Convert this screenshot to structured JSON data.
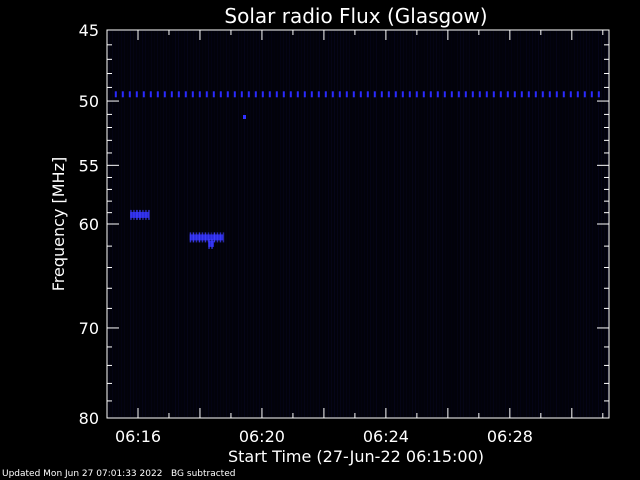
{
  "chart_data": {
    "type": "heatmap",
    "title": "Solar radio Flux (Glasgow)",
    "xlabel": "Start Time (27-Jun-22 06:15:00)",
    "ylabel": "Frequency [MHz]",
    "y_scale": "log",
    "y_range": [
      45,
      80
    ],
    "y_reversed": true,
    "x_range_minutes": [
      6.25,
      6.52
    ],
    "x_ticks": [
      "06:16",
      "06:20",
      "06:24",
      "06:28"
    ],
    "y_ticks": [
      45,
      50,
      55,
      60,
      70,
      80
    ],
    "x_tick_values_hours": [
      6.2667,
      6.3333,
      6.4,
      6.4667
    ],
    "background_color": "#000000",
    "emission_color": "#3030ff",
    "features": [
      {
        "name": "",
        "freq": 49.5,
        "t_start": 6.2542,
        "t_end": 6.5167,
        "kind": "band"
      },
      {
        "name": "",
        "freq": 59.2,
        "t_start": 6.2625,
        "t_end": 6.2725,
        "kind": "burst"
      },
      {
        "name": "",
        "freq": 61.2,
        "t_start": 6.2945,
        "t_end": 6.3125,
        "kind": "burst"
      },
      {
        "name": "",
        "freq": 61.8,
        "t_start": 6.3045,
        "t_end": 6.3075,
        "kind": "burst"
      },
      {
        "name": "",
        "freq": 51.2,
        "t_start": 6.3237,
        "t_end": 6.3245,
        "kind": "dot"
      }
    ]
  },
  "footer": {
    "updated": "Updated Mon Jun 27 07:01:33 2022",
    "bg_note": "BG subtracted"
  }
}
